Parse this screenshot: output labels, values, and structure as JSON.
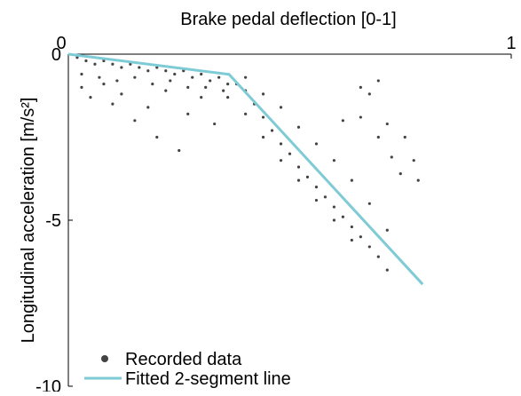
{
  "chart_data": {
    "type": "scatter",
    "xlabel": "Brake pedal deflection [0-1]",
    "ylabel": "Longitudinal acceleration [m/s²]",
    "xlim": [
      0,
      1
    ],
    "xticks": [
      0,
      1
    ],
    "ylim": [
      -10,
      0
    ],
    "yticks": [
      0,
      -5,
      -10
    ],
    "legend": "bottom-left",
    "series": [
      {
        "name": "Recorded data",
        "type": "scatter",
        "color": "#444444",
        "x": [
          0.02,
          0.04,
          0.06,
          0.08,
          0.1,
          0.12,
          0.14,
          0.16,
          0.18,
          0.2,
          0.22,
          0.24,
          0.26,
          0.28,
          0.3,
          0.32,
          0.34,
          0.36,
          0.03,
          0.07,
          0.11,
          0.15,
          0.19,
          0.23,
          0.27,
          0.31,
          0.35,
          0.03,
          0.05,
          0.08,
          0.1,
          0.12,
          0.15,
          0.18,
          0.2,
          0.22,
          0.25,
          0.27,
          0.3,
          0.33,
          0.38,
          0.4,
          0.42,
          0.44,
          0.46,
          0.48,
          0.5,
          0.52,
          0.54,
          0.56,
          0.58,
          0.6,
          0.62,
          0.64,
          0.66,
          0.68,
          0.7,
          0.72,
          0.4,
          0.44,
          0.48,
          0.52,
          0.56,
          0.6,
          0.64,
          0.68,
          0.72,
          0.36,
          0.4,
          0.44,
          0.48,
          0.52,
          0.56,
          0.6,
          0.64,
          0.62,
          0.66,
          0.7,
          0.73,
          0.75,
          0.78,
          0.79,
          0.76,
          0.72,
          0.7,
          0.66,
          0.68
        ],
        "values": [
          -0.1,
          -0.2,
          -0.3,
          -0.2,
          -0.3,
          -0.4,
          -0.3,
          -0.4,
          -0.5,
          -0.4,
          -0.5,
          -0.6,
          -0.5,
          -0.7,
          -0.6,
          -0.8,
          -0.7,
          -0.9,
          -0.6,
          -0.7,
          -0.8,
          -0.7,
          -0.9,
          -0.8,
          -1.0,
          -1.0,
          -1.1,
          -1.0,
          -1.3,
          -0.9,
          -1.5,
          -1.2,
          -2.0,
          -1.6,
          -2.5,
          -1.1,
          -2.9,
          -1.8,
          -1.3,
          -2.1,
          -0.9,
          -1.1,
          -1.5,
          -1.9,
          -2.3,
          -2.7,
          -3.0,
          -3.4,
          -3.7,
          -4.0,
          -4.3,
          -4.6,
          -4.9,
          -5.2,
          -5.5,
          -5.8,
          -6.1,
          -6.5,
          -0.7,
          -1.2,
          -1.6,
          -2.2,
          -2.7,
          -3.2,
          -3.8,
          -4.5,
          -5.3,
          -1.3,
          -1.8,
          -2.5,
          -3.2,
          -3.8,
          -4.4,
          -5.0,
          -5.6,
          -2.0,
          -1.9,
          -2.5,
          -3.1,
          -3.6,
          -3.2,
          -3.8,
          -2.5,
          -2.1,
          -0.8,
          -1.0,
          -1.2
        ]
      },
      {
        "name": "Fitted 2-segment line",
        "type": "line",
        "color": "#7ecbd6",
        "x": [
          0,
          0.363,
          0.8
        ],
        "values": [
          0,
          -0.61,
          -6.93
        ]
      }
    ]
  }
}
